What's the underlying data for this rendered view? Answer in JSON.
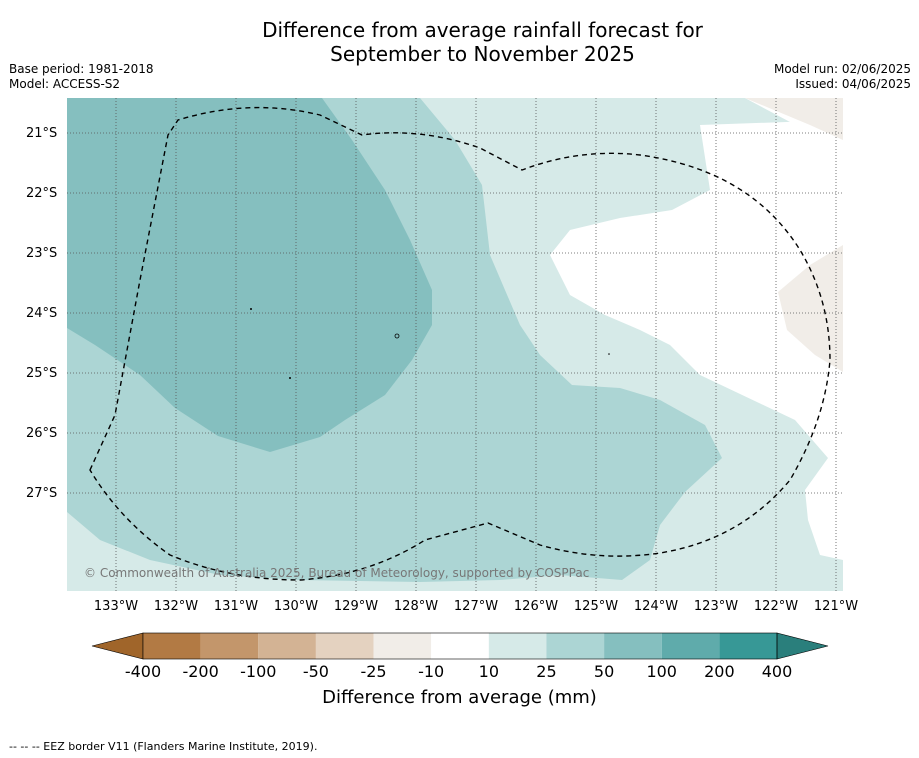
{
  "title_line1": "Difference from average rainfall forecast for",
  "title_line2": "September to November 2025",
  "meta_left": [
    "Base period: 1981-2018",
    "Model: ACCESS-S2"
  ],
  "meta_right": [
    "Model run: 02/06/2025",
    "Issued: 04/06/2025"
  ],
  "lat_labels": [
    "21°S",
    "22°S",
    "23°S",
    "24°S",
    "25°S",
    "26°S",
    "27°S"
  ],
  "lon_labels": [
    "133°W",
    "132°W",
    "131°W",
    "130°W",
    "129°W",
    "128°W",
    "127°W",
    "126°W",
    "125°W",
    "124°W",
    "123°W",
    "122°W",
    "121°W"
  ],
  "copyright": "© Commonwealth of Australia 2025, Bureau of Meteorology, supported by COSPPac",
  "colorbar": {
    "labels": [
      "-400",
      "-200",
      "-100",
      "-50",
      "-25",
      "-10",
      "10",
      "25",
      "50",
      "100",
      "200",
      "400"
    ],
    "colors": [
      "#a0652a",
      "#b27a44",
      "#c3966b",
      "#d3b394",
      "#e4d2c0",
      "#f1ede8",
      "#ffffff",
      "#d6eae8",
      "#acd5d4",
      "#85bfbf",
      "#5fabab",
      "#379896",
      "#2a7f7c"
    ],
    "title": "Difference from average (mm)"
  },
  "footnote": "--  --  -- EEZ border V11 (Flanders Marine Institute, 2019)."
}
